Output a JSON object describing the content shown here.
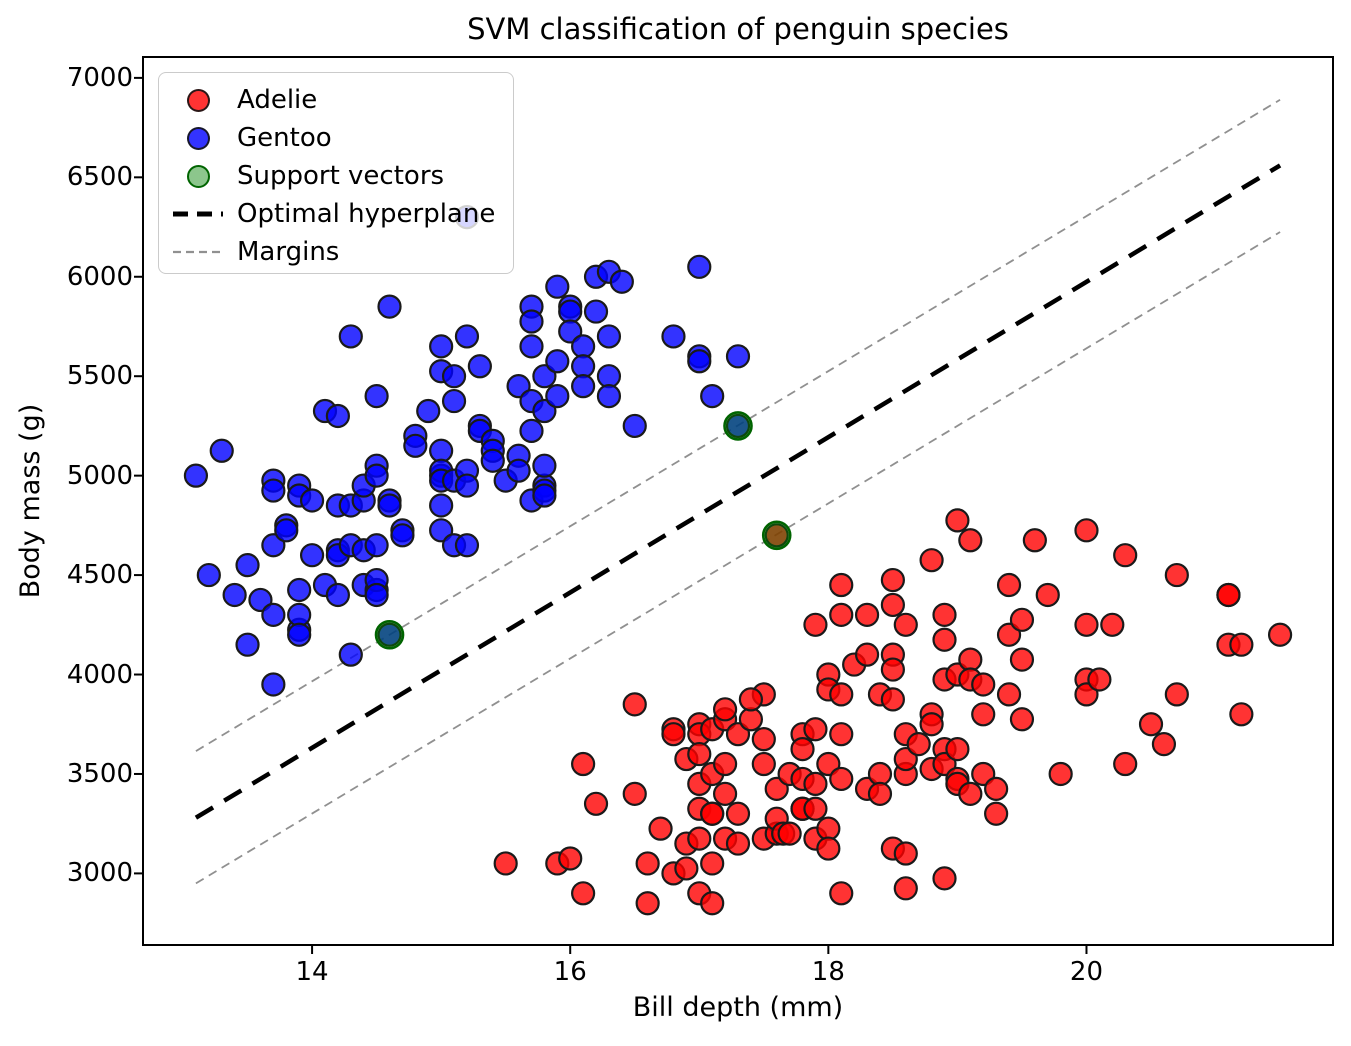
{
  "chart_data": {
    "type": "scatter",
    "title": "SVM classification of penguin species",
    "xlabel": "Bill depth (mm)",
    "ylabel": "Body mass (g)",
    "xlim": [
      12.69,
      21.91
    ],
    "ylim": [
      2640,
      7105
    ],
    "x_ticks": [
      14,
      16,
      18,
      20
    ],
    "y_ticks": [
      3000,
      3500,
      4000,
      4500,
      5000,
      5500,
      6000,
      6500,
      7000
    ],
    "grid": false,
    "legend_position": "upper left",
    "colors": {
      "adelie": "#ff0000",
      "gentoo": "#0000ff",
      "support_fill": "#008000",
      "support_edge": "#006400",
      "hyperplane": "#000000",
      "margins": "#909090",
      "marker_edge": "#1a1a1a"
    },
    "series": [
      {
        "name": "Adelie",
        "kind": "scatter",
        "color": "#ff0000",
        "points": [
          [
            15.5,
            3050
          ],
          [
            15.9,
            3050
          ],
          [
            16.0,
            3075
          ],
          [
            16.1,
            3550
          ],
          [
            16.1,
            2900
          ],
          [
            16.2,
            3350
          ],
          [
            16.5,
            3850
          ],
          [
            16.5,
            3400
          ],
          [
            16.6,
            3050
          ],
          [
            16.6,
            2850
          ],
          [
            16.7,
            3225
          ],
          [
            16.8,
            3725
          ],
          [
            16.8,
            3700
          ],
          [
            16.8,
            3000
          ],
          [
            16.9,
            3150
          ],
          [
            16.9,
            3025
          ],
          [
            16.9,
            3575
          ],
          [
            17.0,
            3750
          ],
          [
            17.0,
            3700
          ],
          [
            17.0,
            3600
          ],
          [
            17.0,
            3450
          ],
          [
            17.0,
            3325
          ],
          [
            17.0,
            3175
          ],
          [
            17.0,
            2900
          ],
          [
            17.1,
            3300
          ],
          [
            17.1,
            3725
          ],
          [
            17.1,
            3500
          ],
          [
            17.1,
            3300
          ],
          [
            17.1,
            3050
          ],
          [
            17.1,
            2850
          ],
          [
            17.2,
            3775
          ],
          [
            17.2,
            3825
          ],
          [
            17.2,
            3550
          ],
          [
            17.2,
            3400
          ],
          [
            17.2,
            3175
          ],
          [
            17.3,
            3150
          ],
          [
            17.3,
            3700
          ],
          [
            17.3,
            3300
          ],
          [
            17.4,
            3775
          ],
          [
            17.5,
            3900
          ],
          [
            17.4,
            3875
          ],
          [
            17.5,
            3675
          ],
          [
            17.5,
            3550
          ],
          [
            17.5,
            3175
          ],
          [
            17.6,
            3200
          ],
          [
            17.6,
            3425
          ],
          [
            17.6,
            3275
          ],
          [
            17.65,
            3200
          ],
          [
            17.7,
            3500
          ],
          [
            17.7,
            3200
          ],
          [
            17.8,
            3325
          ],
          [
            17.8,
            3700
          ],
          [
            17.8,
            3625
          ],
          [
            17.8,
            3475
          ],
          [
            17.8,
            3325
          ],
          [
            17.9,
            4250
          ],
          [
            17.9,
            3725
          ],
          [
            17.9,
            3450
          ],
          [
            17.9,
            3325
          ],
          [
            17.9,
            3175
          ],
          [
            18.0,
            4000
          ],
          [
            18.0,
            3925
          ],
          [
            18.0,
            3550
          ],
          [
            18.0,
            3225
          ],
          [
            18.0,
            3125
          ],
          [
            18.1,
            4450
          ],
          [
            18.1,
            4300
          ],
          [
            18.1,
            3900
          ],
          [
            18.1,
            3700
          ],
          [
            18.1,
            3475
          ],
          [
            18.1,
            2900
          ],
          [
            18.2,
            4050
          ],
          [
            18.3,
            4100
          ],
          [
            18.3,
            4300
          ],
          [
            18.3,
            3425
          ],
          [
            18.4,
            3900
          ],
          [
            18.4,
            3500
          ],
          [
            18.4,
            3400
          ],
          [
            18.5,
            4475
          ],
          [
            18.5,
            4350
          ],
          [
            18.5,
            4100
          ],
          [
            18.5,
            4025
          ],
          [
            18.5,
            3875
          ],
          [
            18.5,
            3125
          ],
          [
            18.6,
            3500
          ],
          [
            18.6,
            4250
          ],
          [
            18.6,
            3700
          ],
          [
            18.6,
            3575
          ],
          [
            18.6,
            3100
          ],
          [
            18.6,
            2925
          ],
          [
            18.7,
            3650
          ],
          [
            18.8,
            3525
          ],
          [
            18.8,
            4575
          ],
          [
            18.8,
            3800
          ],
          [
            18.8,
            3750
          ],
          [
            18.9,
            3625
          ],
          [
            18.9,
            4300
          ],
          [
            18.9,
            4175
          ],
          [
            18.9,
            3975
          ],
          [
            18.9,
            3550
          ],
          [
            18.9,
            2975
          ],
          [
            19.0,
            4775
          ],
          [
            19.0,
            4000
          ],
          [
            19.0,
            3625
          ],
          [
            19.0,
            3475
          ],
          [
            19.0,
            3450
          ],
          [
            19.1,
            4075
          ],
          [
            19.1,
            3400
          ],
          [
            19.1,
            4675
          ],
          [
            19.1,
            3975
          ],
          [
            19.2,
            3950
          ],
          [
            19.2,
            3800
          ],
          [
            19.2,
            3500
          ],
          [
            19.3,
            3425
          ],
          [
            19.3,
            3300
          ],
          [
            19.4,
            4450
          ],
          [
            19.4,
            4200
          ],
          [
            19.4,
            3900
          ],
          [
            19.5,
            4275
          ],
          [
            19.5,
            4075
          ],
          [
            19.5,
            3775
          ],
          [
            19.6,
            4675
          ],
          [
            19.7,
            4400
          ],
          [
            19.8,
            3500
          ],
          [
            20.0,
            4725
          ],
          [
            20.0,
            4250
          ],
          [
            20.0,
            3975
          ],
          [
            20.0,
            3900
          ],
          [
            20.1,
            3975
          ],
          [
            20.2,
            4250
          ],
          [
            20.3,
            4600
          ],
          [
            20.3,
            3550
          ],
          [
            20.5,
            3750
          ],
          [
            20.6,
            3650
          ],
          [
            20.7,
            4500
          ],
          [
            20.7,
            3900
          ],
          [
            21.1,
            4400
          ],
          [
            21.1,
            4400
          ],
          [
            21.1,
            4150
          ],
          [
            21.2,
            4150
          ],
          [
            21.2,
            3800
          ],
          [
            21.5,
            4200
          ],
          [
            17.6,
            4700
          ]
        ]
      },
      {
        "name": "Gentoo",
        "kind": "scatter",
        "color": "#0000ff",
        "points": [
          [
            13.1,
            5000
          ],
          [
            13.2,
            4500
          ],
          [
            13.3,
            5125
          ],
          [
            13.4,
            4400
          ],
          [
            13.5,
            4550
          ],
          [
            13.5,
            4150
          ],
          [
            13.6,
            4375
          ],
          [
            13.7,
            4300
          ],
          [
            13.7,
            4975
          ],
          [
            13.7,
            4925
          ],
          [
            13.7,
            4650
          ],
          [
            13.7,
            3950
          ],
          [
            13.8,
            4750
          ],
          [
            13.8,
            4725
          ],
          [
            13.9,
            4950
          ],
          [
            13.9,
            4225
          ],
          [
            13.9,
            4900
          ],
          [
            13.9,
            4425
          ],
          [
            13.9,
            4300
          ],
          [
            13.9,
            4200
          ],
          [
            14.0,
            4875
          ],
          [
            14.0,
            4600
          ],
          [
            14.1,
            5325
          ],
          [
            14.1,
            4450
          ],
          [
            14.2,
            4400
          ],
          [
            14.2,
            5300
          ],
          [
            14.2,
            4850
          ],
          [
            14.2,
            4625
          ],
          [
            14.2,
            4600
          ],
          [
            14.3,
            4850
          ],
          [
            14.3,
            5700
          ],
          [
            14.3,
            4650
          ],
          [
            14.3,
            4100
          ],
          [
            14.4,
            4875
          ],
          [
            14.4,
            4450
          ],
          [
            14.4,
            4950
          ],
          [
            14.4,
            4625
          ],
          [
            14.5,
            4650
          ],
          [
            14.5,
            4425
          ],
          [
            14.5,
            5400
          ],
          [
            14.5,
            5050
          ],
          [
            14.5,
            5000
          ],
          [
            14.5,
            4475
          ],
          [
            14.5,
            4400
          ],
          [
            14.6,
            5850
          ],
          [
            14.6,
            4875
          ],
          [
            14.6,
            4850
          ],
          [
            14.6,
            4200
          ],
          [
            14.7,
            4725
          ],
          [
            14.7,
            4700
          ],
          [
            14.8,
            5200
          ],
          [
            14.8,
            5150
          ],
          [
            14.9,
            5325
          ],
          [
            15.0,
            5000
          ],
          [
            15.0,
            5650
          ],
          [
            15.0,
            5525
          ],
          [
            15.1,
            5500
          ],
          [
            15.0,
            5125
          ],
          [
            15.0,
            5025
          ],
          [
            15.0,
            4975
          ],
          [
            15.0,
            4850
          ],
          [
            15.0,
            4725
          ],
          [
            15.1,
            5375
          ],
          [
            15.1,
            4975
          ],
          [
            15.1,
            4650
          ],
          [
            15.2,
            5700
          ],
          [
            15.2,
            6300
          ],
          [
            15.2,
            5025
          ],
          [
            15.2,
            4950
          ],
          [
            15.2,
            4650
          ],
          [
            15.3,
            5550
          ],
          [
            15.3,
            5250
          ],
          [
            15.3,
            5225
          ],
          [
            15.4,
            5175
          ],
          [
            15.4,
            5125
          ],
          [
            15.4,
            5075
          ],
          [
            15.5,
            4975
          ],
          [
            15.6,
            5450
          ],
          [
            15.6,
            5100
          ],
          [
            15.6,
            5025
          ],
          [
            15.7,
            5375
          ],
          [
            15.7,
            5850
          ],
          [
            15.7,
            5775
          ],
          [
            15.7,
            5650
          ],
          [
            15.7,
            5225
          ],
          [
            15.7,
            4875
          ],
          [
            15.8,
            4950
          ],
          [
            15.8,
            5500
          ],
          [
            15.8,
            5325
          ],
          [
            15.8,
            5050
          ],
          [
            15.8,
            4925
          ],
          [
            15.8,
            4900
          ],
          [
            15.9,
            5950
          ],
          [
            15.9,
            5575
          ],
          [
            15.9,
            5400
          ],
          [
            16.0,
            5850
          ],
          [
            16.0,
            5825
          ],
          [
            16.0,
            5725
          ],
          [
            16.1,
            5650
          ],
          [
            16.1,
            5550
          ],
          [
            16.1,
            5450
          ],
          [
            16.2,
            6000
          ],
          [
            16.2,
            5825
          ],
          [
            16.3,
            6025
          ],
          [
            16.3,
            5700
          ],
          [
            16.3,
            5500
          ],
          [
            16.3,
            5400
          ],
          [
            16.4,
            5975
          ],
          [
            16.5,
            5250
          ],
          [
            16.8,
            5700
          ],
          [
            17.0,
            6050
          ],
          [
            17.0,
            5600
          ],
          [
            17.0,
            5575
          ],
          [
            17.1,
            5400
          ],
          [
            17.3,
            5600
          ],
          [
            17.3,
            5250
          ]
        ]
      },
      {
        "name": "Support vectors",
        "kind": "scatter-ring",
        "color": "#008000",
        "edge_color": "#006400",
        "points": [
          [
            14.6,
            4200
          ],
          [
            17.3,
            5250
          ],
          [
            17.6,
            4700
          ]
        ]
      },
      {
        "name": "Optimal hyperplane",
        "kind": "line",
        "color": "#000000",
        "width": 4.5,
        "dash": [
          20,
          13
        ],
        "points": [
          [
            13.1,
            3280
          ],
          [
            21.5,
            6560
          ]
        ]
      },
      {
        "name": "Margins",
        "kind": "multiline",
        "color": "#909090",
        "width": 1.8,
        "dash": [
          9,
          6
        ],
        "lines": [
          [
            [
              13.1,
              3615
            ],
            [
              21.5,
              6890
            ]
          ],
          [
            [
              13.1,
              2950
            ],
            [
              21.5,
              6225
            ]
          ]
        ]
      }
    ]
  }
}
